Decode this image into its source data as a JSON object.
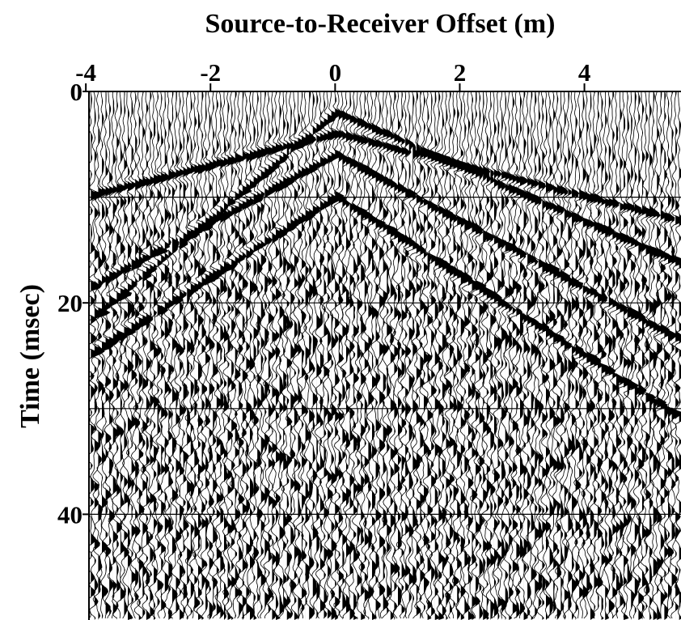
{
  "chart_data": {
    "type": "seismic-gather",
    "x_label": "Source-to-Receiver Offset (m)",
    "y_label": "Time (msec)",
    "xlim": [
      -3.95,
      5.55
    ],
    "xticks": [
      -4,
      -2,
      0,
      2,
      4
    ],
    "ylim": [
      0,
      50
    ],
    "yticks": [
      0,
      20,
      40
    ],
    "y_grid": [
      10,
      20,
      30,
      40
    ],
    "color": "#000000"
  }
}
